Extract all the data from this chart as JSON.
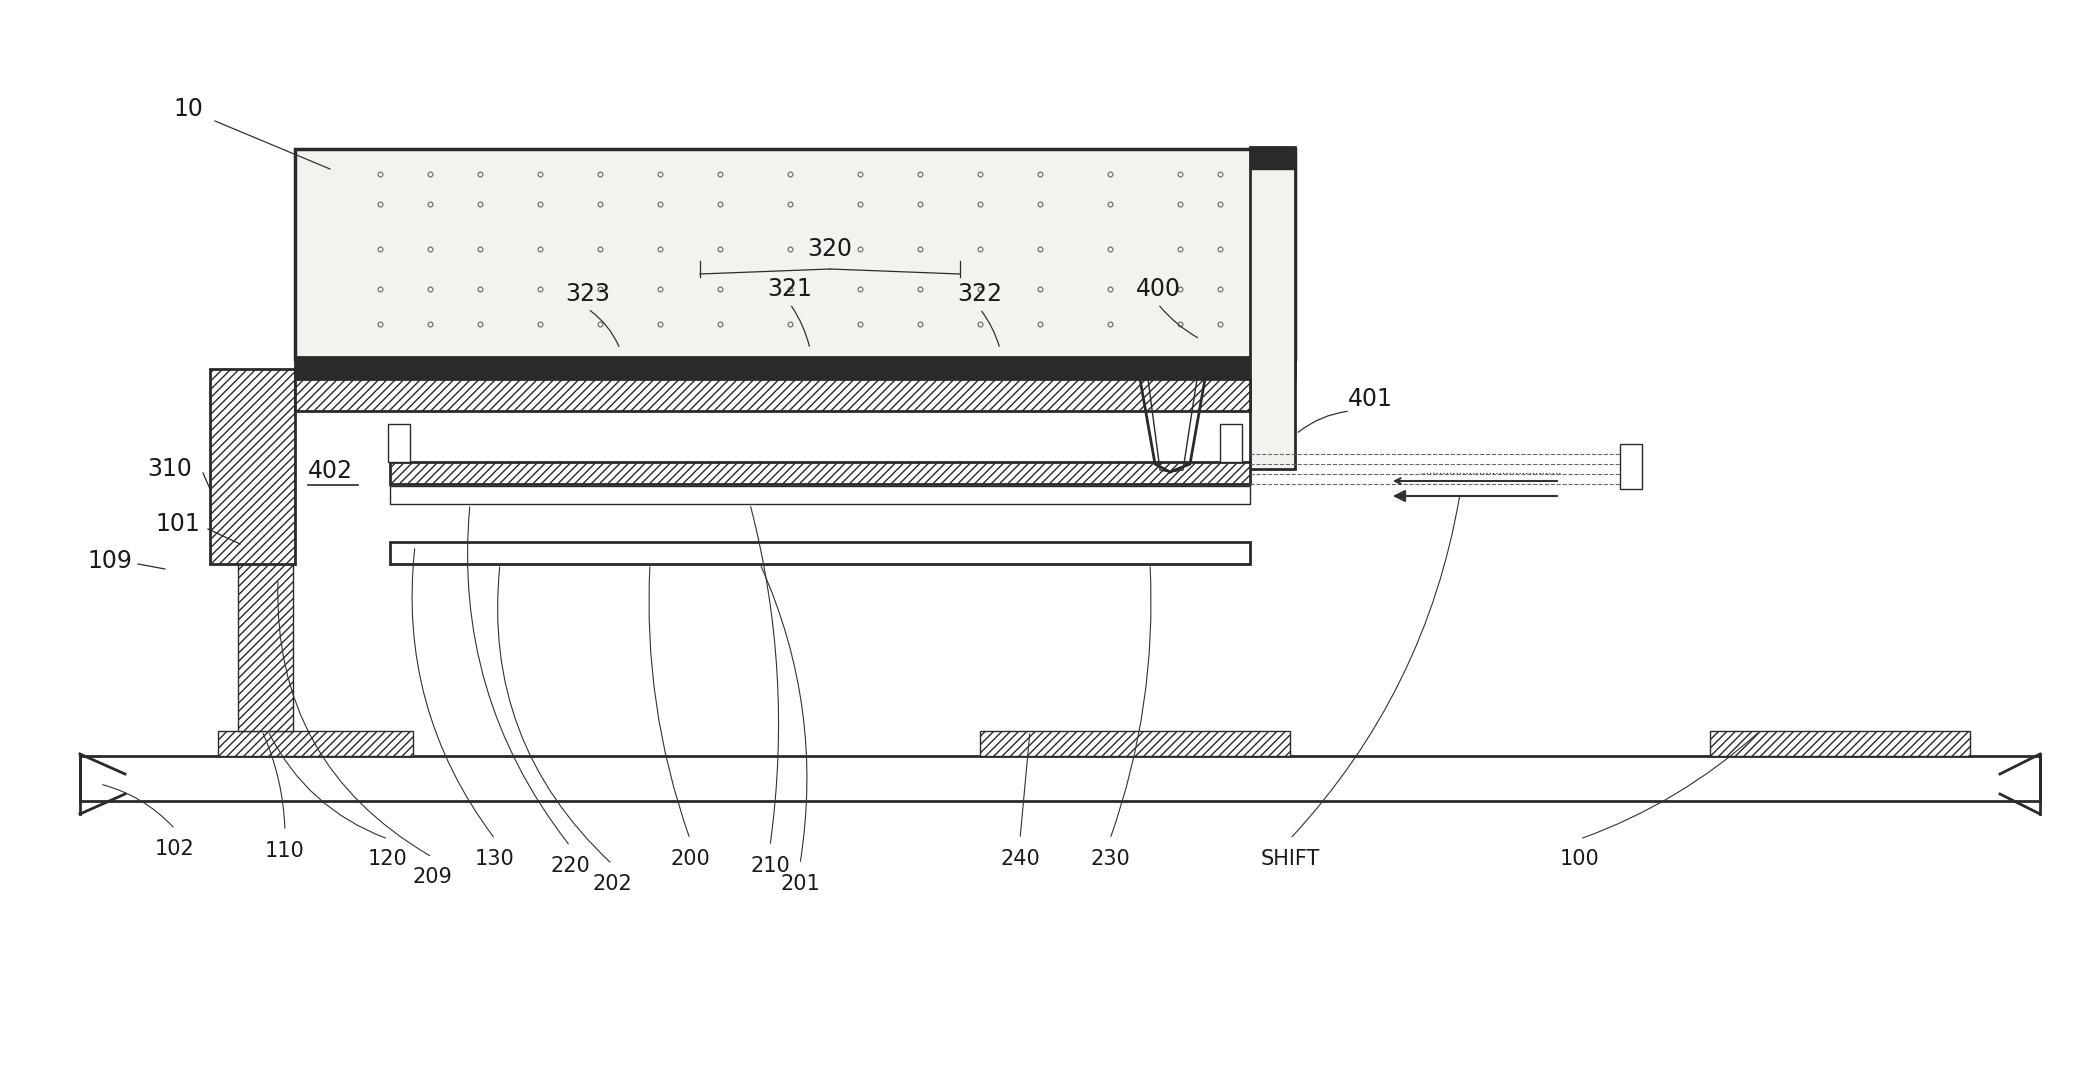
{
  "bg_color": "#ffffff",
  "line_color": "#2a2a2a",
  "fig_width": 20.98,
  "fig_height": 10.69,
  "dpi": 100
}
